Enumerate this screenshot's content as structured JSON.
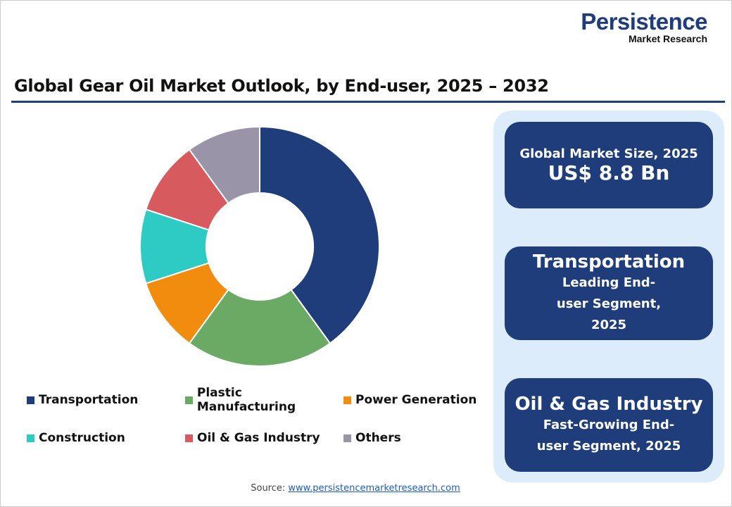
{
  "logo": {
    "line1": "Persistence",
    "line2": "Market Research"
  },
  "title": "Global Gear Oil Market Outlook, by End-user, 2025 – 2032",
  "cards": [
    {
      "label": "Global Market Size, 2025",
      "value": "US$ 8.8 Bn"
    },
    {
      "value": "Transportation",
      "label": "Leading End-user Segment, 2025"
    },
    {
      "value": "Oil & Gas Industry",
      "label": "Fast-Growing End-user Segment, 2025"
    }
  ],
  "source": {
    "prefix": "Source: ",
    "link": "www.persistencemarketresearch.com"
  },
  "chart_data": {
    "type": "pie",
    "donut": true,
    "legend_position": "bottom",
    "categories": [
      "Transportation",
      "Plastic Manufacturing",
      "Power Generation",
      "Construction",
      "Oil & Gas Industry",
      "Others"
    ],
    "values": [
      40,
      20,
      10,
      10,
      10,
      10
    ],
    "colors": [
      "#1f3d7a",
      "#6aaa64",
      "#f28c0f",
      "#2ecac4",
      "#d65a5e",
      "#9a94a8"
    ]
  }
}
